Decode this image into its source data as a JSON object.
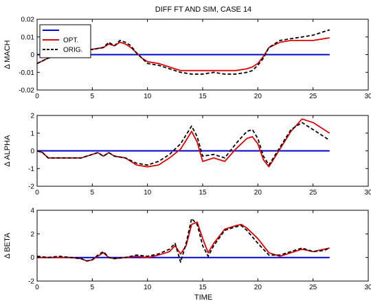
{
  "figure": {
    "title": "DIFF FT AND SIM, CASE 14",
    "xlabel": "TIME"
  },
  "colors": {
    "zero_line": "#0000cc",
    "optimized": "#dd0000",
    "original": "#000000"
  },
  "legend": {
    "entries": [
      {
        "label": "",
        "color": "#0000cc",
        "style": "solid"
      },
      {
        "label": "OPT.",
        "color": "#dd0000",
        "style": "solid"
      },
      {
        "label": "ORIG.",
        "color": "#000000",
        "style": "dashed"
      }
    ]
  },
  "chart_data": [
    {
      "type": "line",
      "ylabel": "Δ MACH",
      "xlim": [
        0,
        30
      ],
      "ylim": [
        -0.02,
        0.02
      ],
      "xticks": [
        0,
        5,
        10,
        15,
        20,
        25,
        30
      ],
      "yticks": [
        -0.02,
        -0.01,
        0,
        0.01,
        0.02
      ],
      "xtick_labels": [
        "0",
        "5",
        "10",
        "15",
        "20",
        "25",
        "30"
      ],
      "ytick_labels": [
        "-0.02",
        "-0.01",
        "0",
        "0.01",
        "0.02"
      ],
      "grid": false,
      "series": [
        {
          "name": "",
          "key": "zero",
          "x": [
            0,
            26.5
          ],
          "y": [
            0,
            0
          ]
        },
        {
          "name": "OPT.",
          "key": "opt",
          "x": [
            0,
            1,
            2,
            3,
            4,
            5,
            6,
            6.5,
            7,
            7.5,
            8,
            8.5,
            9,
            9.5,
            10,
            11,
            12,
            13,
            14,
            15,
            16,
            17,
            18,
            19,
            19.5,
            20,
            20.5,
            21,
            22,
            23,
            24,
            25,
            26,
            26.5
          ],
          "y": [
            -0.005,
            -0.002,
            0.0,
            0.001,
            0.002,
            0.003,
            0.004,
            0.006,
            0.005,
            0.007,
            0.006,
            0.004,
            0.001,
            -0.002,
            -0.004,
            -0.005,
            -0.007,
            -0.009,
            -0.009,
            -0.009,
            -0.009,
            -0.009,
            -0.009,
            -0.008,
            -0.007,
            -0.005,
            -0.001,
            0.004,
            0.007,
            0.008,
            0.008,
            0.008,
            0.009,
            0.0095
          ]
        },
        {
          "name": "ORIG.",
          "key": "orig",
          "x": [
            0,
            1,
            2,
            3,
            4,
            5,
            6,
            6.5,
            7,
            7.5,
            8,
            8.5,
            9,
            9.5,
            10,
            11,
            12,
            13,
            14,
            15,
            16,
            17,
            18,
            19,
            19.5,
            20,
            20.5,
            21,
            22,
            23,
            24,
            25,
            26,
            26.5
          ],
          "y": [
            -0.005,
            -0.002,
            0.0,
            0.001,
            0.002,
            0.003,
            0.004,
            0.007,
            0.005,
            0.008,
            0.007,
            0.005,
            0.001,
            -0.002,
            -0.005,
            -0.006,
            -0.008,
            -0.01,
            -0.011,
            -0.011,
            -0.01,
            -0.011,
            -0.011,
            -0.01,
            -0.009,
            -0.006,
            -0.002,
            0.004,
            0.008,
            0.009,
            0.01,
            0.011,
            0.013,
            0.014
          ]
        }
      ]
    },
    {
      "type": "line",
      "ylabel": "Δ ALPHA",
      "xlim": [
        0,
        30
      ],
      "ylim": [
        -2,
        2
      ],
      "xticks": [
        0,
        5,
        10,
        15,
        20,
        25,
        30
      ],
      "yticks": [
        -2,
        -1,
        0,
        1,
        2
      ],
      "xtick_labels": [
        "0",
        "5",
        "10",
        "15",
        "20",
        "25",
        "30"
      ],
      "ytick_labels": [
        "-2",
        "-1",
        "0",
        "1",
        "2"
      ],
      "grid": false,
      "series": [
        {
          "name": "",
          "key": "zero",
          "x": [
            0,
            26.5
          ],
          "y": [
            0,
            0
          ]
        },
        {
          "name": "OPT.",
          "key": "opt",
          "x": [
            0,
            0.5,
            1,
            2,
            3,
            4,
            5,
            5.5,
            6,
            6.5,
            7,
            8,
            9,
            10,
            11,
            12,
            13,
            13.5,
            14,
            14.5,
            15,
            16,
            17,
            18,
            19,
            19.5,
            20,
            20.5,
            21,
            22,
            23,
            24,
            25,
            26,
            26.5
          ],
          "y": [
            0.0,
            -0.1,
            -0.4,
            -0.4,
            -0.4,
            -0.4,
            -0.2,
            -0.1,
            -0.3,
            -0.1,
            -0.3,
            -0.4,
            -0.8,
            -0.9,
            -0.8,
            -0.4,
            0.1,
            0.6,
            1.1,
            0.5,
            -0.6,
            -0.4,
            -0.6,
            0.1,
            0.7,
            0.8,
            0.4,
            -0.5,
            -0.9,
            0.1,
            1.1,
            1.8,
            1.6,
            1.2,
            1.0
          ]
        },
        {
          "name": "ORIG.",
          "key": "orig",
          "x": [
            0,
            0.5,
            1,
            2,
            3,
            4,
            5,
            5.5,
            6,
            6.5,
            7,
            8,
            9,
            10,
            11,
            12,
            13,
            13.5,
            14,
            14.5,
            15,
            16,
            17,
            18,
            19,
            19.5,
            20,
            20.5,
            21,
            22,
            23,
            24,
            25,
            26,
            26.5
          ],
          "y": [
            0.0,
            -0.1,
            -0.4,
            -0.4,
            -0.4,
            -0.4,
            -0.2,
            -0.1,
            -0.3,
            -0.1,
            -0.3,
            -0.4,
            -0.7,
            -0.8,
            -0.6,
            -0.2,
            0.4,
            0.9,
            1.4,
            0.8,
            -0.3,
            -0.2,
            -0.4,
            0.4,
            1.1,
            1.2,
            0.7,
            -0.3,
            -0.8,
            0.2,
            1.2,
            1.6,
            1.2,
            0.8,
            0.6
          ]
        }
      ]
    },
    {
      "type": "line",
      "ylabel": "Δ BETA",
      "xlim": [
        0,
        30
      ],
      "ylim": [
        -2,
        4
      ],
      "xticks": [
        0,
        5,
        10,
        15,
        20,
        25,
        30
      ],
      "yticks": [
        -2,
        0,
        2,
        4
      ],
      "xtick_labels": [
        "0",
        "5",
        "10",
        "15",
        "20",
        "25",
        "30"
      ],
      "ytick_labels": [
        "-2",
        "0",
        "2",
        "4"
      ],
      "grid": false,
      "series": [
        {
          "name": "",
          "key": "zero",
          "x": [
            0,
            26.5
          ],
          "y": [
            0,
            0
          ]
        },
        {
          "name": "OPT.",
          "key": "opt",
          "x": [
            0,
            1,
            2,
            3,
            4,
            4.5,
            5,
            5.5,
            6,
            6.5,
            7,
            8,
            9,
            10,
            11,
            12,
            12.5,
            13,
            13.5,
            14,
            14.5,
            15,
            15.5,
            16,
            17,
            18,
            18.5,
            19,
            20,
            21,
            22,
            23,
            24,
            25,
            26,
            26.5
          ],
          "y": [
            0.0,
            0.0,
            0.0,
            0.0,
            -0.1,
            -0.3,
            -0.2,
            0.1,
            0.4,
            0.0,
            -0.1,
            0.0,
            0.1,
            0.0,
            0.2,
            0.5,
            1.0,
            0.3,
            1.0,
            2.8,
            3.0,
            1.6,
            0.4,
            1.2,
            2.4,
            2.7,
            2.8,
            2.5,
            1.6,
            0.4,
            0.1,
            0.4,
            0.7,
            0.5,
            0.7,
            0.8
          ]
        },
        {
          "name": "ORIG.",
          "key": "orig",
          "x": [
            0,
            1,
            2,
            3,
            4,
            4.5,
            5,
            5.5,
            6,
            6.5,
            7,
            8,
            9,
            10,
            11,
            12,
            12.5,
            13,
            13.5,
            14,
            14.5,
            15,
            15.5,
            16,
            17,
            18,
            18.5,
            19,
            20,
            21,
            22,
            23,
            24,
            25,
            26,
            26.5
          ],
          "y": [
            0.1,
            0.0,
            0.1,
            0.0,
            -0.1,
            -0.3,
            -0.2,
            0.2,
            0.5,
            0.0,
            -0.1,
            0.0,
            0.2,
            0.1,
            0.3,
            0.7,
            1.2,
            -0.4,
            1.2,
            3.3,
            2.8,
            1.0,
            0.1,
            1.0,
            2.3,
            2.6,
            2.7,
            2.3,
            1.2,
            0.2,
            0.2,
            0.5,
            0.8,
            0.5,
            0.6,
            0.8
          ]
        }
      ]
    }
  ]
}
